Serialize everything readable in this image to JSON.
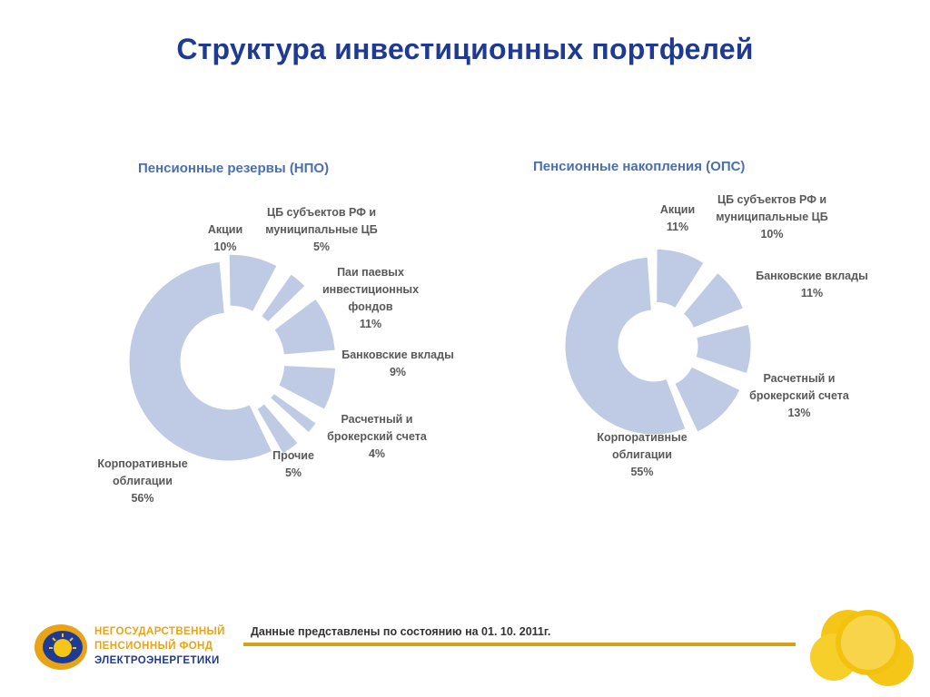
{
  "title": "Структура инвестиционных портфелей",
  "chart_data": [
    {
      "type": "pie",
      "title": "Пенсионные резервы (НПО)",
      "slices": [
        {
          "label": "Акции",
          "value": 10
        },
        {
          "label": "ЦБ субъектов РФ и муниципальные ЦБ",
          "value": 5
        },
        {
          "label": "Паи паевых инвестиционных фондов",
          "value": 11
        },
        {
          "label": "Банковские вклады",
          "value": 9
        },
        {
          "label": "Расчетный и брокерский счета",
          "value": 4
        },
        {
          "label": "Прочие",
          "value": 5
        },
        {
          "label": "Корпоративные облигации",
          "value": 56
        }
      ],
      "value_labels": [
        "10%",
        "5%",
        "11%",
        "9%",
        "4%",
        "5%",
        "56%"
      ],
      "label_lines": [
        [
          "Акции"
        ],
        [
          "ЦБ субъектов РФ и",
          "муниципальные ЦБ"
        ],
        [
          "Паи паевых",
          "инвестиционных",
          "фондов"
        ],
        [
          "Банковские вклады"
        ],
        [
          "Расчетный и",
          "брокерский счета"
        ],
        [
          "Прочие"
        ],
        [
          "Корпоративные",
          "облигации"
        ]
      ]
    },
    {
      "type": "pie",
      "title": "Пенсионные накопления (ОПС)",
      "slices": [
        {
          "label": "Акции",
          "value": 11
        },
        {
          "label": "ЦБ субъектов РФ и муниципальные ЦБ",
          "value": 10
        },
        {
          "label": "Банковские вклады",
          "value": 11
        },
        {
          "label": "Расчетный и брокерский счета",
          "value": 13
        },
        {
          "label": "Корпоративные облигации",
          "value": 55
        }
      ],
      "value_labels": [
        "11%",
        "10%",
        "11%",
        "13%",
        "55%"
      ],
      "label_lines": [
        [
          "Акции"
        ],
        [
          "ЦБ субъектов РФ и",
          "муниципальные ЦБ"
        ],
        [
          "Банковские вклады"
        ],
        [
          "Расчетный и",
          "брокерский счета"
        ],
        [
          "Корпоративные",
          "облигации"
        ]
      ]
    }
  ],
  "footer": {
    "note": "Данные представлены по состоянию на 01. 10. 2011г.",
    "logo_lines": [
      "НЕГОСУДАРСТВЕННЫЙ",
      "ПЕНСИОННЫЙ ФОНД",
      "ЭЛЕКТРОЭНЕРГЕТИКИ"
    ]
  },
  "colors": {
    "title": "#1f3a93",
    "chart_title": "#4a6fb0",
    "slice": "#bfcbe4",
    "accent": "#d4a21a",
    "label": "#595959"
  }
}
